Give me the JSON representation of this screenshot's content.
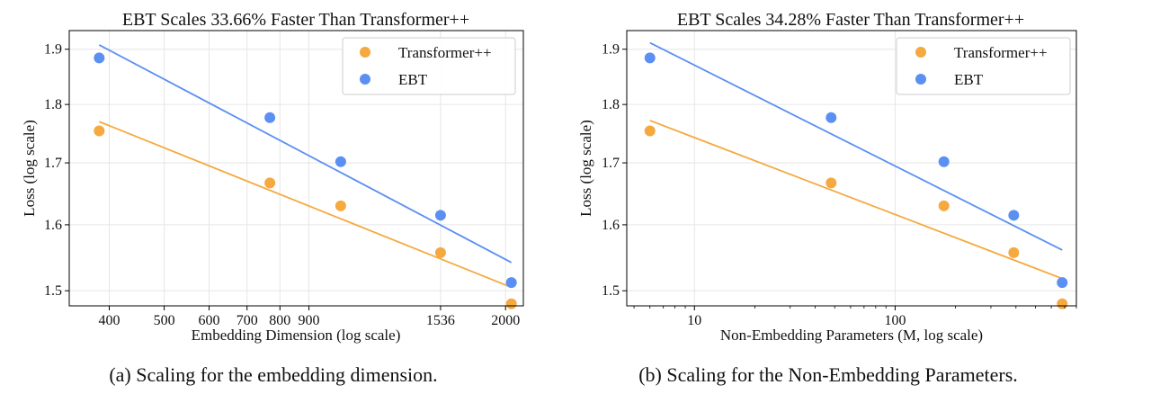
{
  "chart_data": [
    {
      "type": "scatter",
      "title": "EBT Scales 33.66% Faster Than Transformer++",
      "xlabel": "Embedding Dimension (log scale)",
      "ylabel": "Loss (log scale)",
      "x_scale": "log",
      "y_scale": "log",
      "xlim": [
        340,
        2150
      ],
      "ylim": [
        1.478,
        1.935
      ],
      "x_ticks": [
        400,
        500,
        600,
        700,
        800,
        900,
        1536,
        2000
      ],
      "x_tick_labels": [
        "400",
        "500",
        "600",
        "700",
        "800",
        "900",
        "1536",
        "2000"
      ],
      "y_ticks": [
        1.5,
        1.6,
        1.7,
        1.8,
        1.9
      ],
      "y_tick_labels": [
        "1.5",
        "1.6",
        "1.7",
        "1.8",
        "1.9"
      ],
      "grid": true,
      "legend_position": "top-right",
      "series": [
        {
          "name": "Transformer++",
          "color": "#F5A93F",
          "x": [
            384,
            768,
            1024,
            1536,
            2048
          ],
          "y": [
            1.754,
            1.667,
            1.63,
            1.557,
            1.481
          ],
          "fit_x": [
            384,
            2048
          ],
          "fit_y": [
            1.77,
            1.505
          ]
        },
        {
          "name": "EBT",
          "color": "#5B8FF2",
          "x": [
            384,
            768,
            1024,
            1536,
            2048
          ],
          "y": [
            1.884,
            1.777,
            1.702,
            1.615,
            1.512
          ],
          "fit_x": [
            384,
            2048
          ],
          "fit_y": [
            1.908,
            1.542
          ]
        }
      ]
    },
    {
      "type": "scatter",
      "title": "EBT Scales 34.28% Faster Than Transformer++",
      "xlabel": "Non-Embedding Parameters (M, log scale)",
      "ylabel": "Loss (log scale)",
      "x_scale": "log",
      "y_scale": "log",
      "xlim": [
        4.6,
        800
      ],
      "ylim": [
        1.478,
        1.935
      ],
      "x_ticks": [
        10,
        100
      ],
      "x_tick_labels": [
        "10",
        "100"
      ],
      "x_minor_ticks": [
        5,
        6,
        7,
        8,
        9,
        20,
        30,
        40,
        50,
        60,
        70,
        80,
        90,
        200,
        300,
        400,
        500,
        600,
        700,
        800
      ],
      "y_ticks": [
        1.5,
        1.6,
        1.7,
        1.8,
        1.9
      ],
      "y_tick_labels": [
        "1.5",
        "1.6",
        "1.7",
        "1.8",
        "1.9"
      ],
      "grid": true,
      "legend_position": "top-right",
      "series": [
        {
          "name": "Transformer++",
          "color": "#F5A93F",
          "x": [
            6,
            48,
            175,
            390,
            680
          ],
          "y": [
            1.754,
            1.667,
            1.63,
            1.557,
            1.481
          ],
          "fit_x": [
            6,
            680
          ],
          "fit_y": [
            1.772,
            1.518
          ]
        },
        {
          "name": "EBT",
          "color": "#5B8FF2",
          "x": [
            6,
            48,
            175,
            390,
            680
          ],
          "y": [
            1.884,
            1.777,
            1.702,
            1.615,
            1.512
          ],
          "fit_x": [
            6,
            680
          ],
          "fit_y": [
            1.912,
            1.561
          ]
        }
      ]
    }
  ],
  "captions": [
    "(a) Scaling for the embedding dimension.",
    "(b) Scaling for the Non-Embedding Parameters."
  ]
}
